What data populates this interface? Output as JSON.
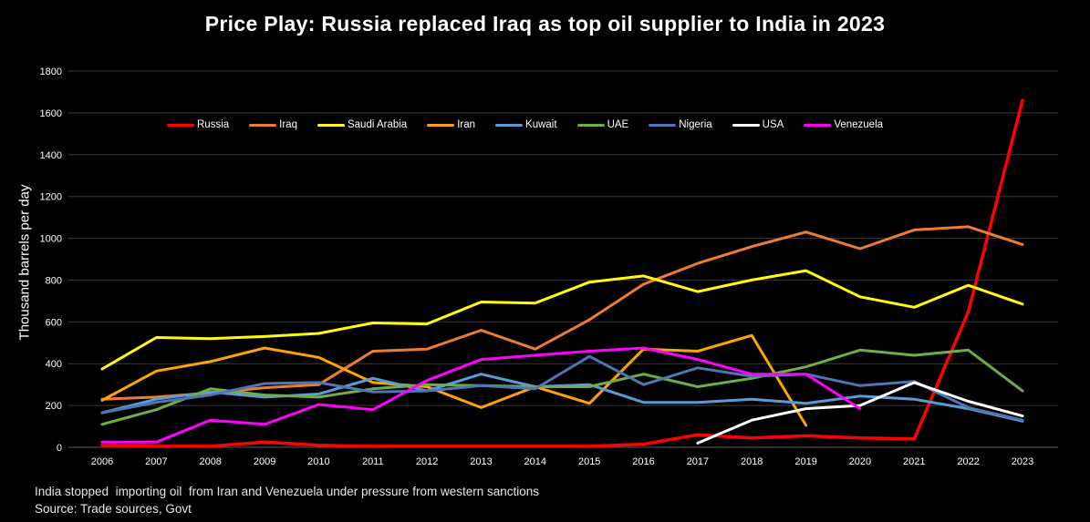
{
  "page": {
    "title": "Price Play: Russia replaced Iraq as top oil supplier to India in 2023",
    "footnote": "India stopped  importing oil  from Iran and Venezuela under pressure from western sanctions",
    "source": "Source: Trade sources, Govt"
  },
  "chart_data": {
    "type": "line",
    "title": "Price Play: Russia replaced Iraq as top oil supplier to India in 2023",
    "xlabel": "",
    "ylabel": "Thousand barrels per day",
    "ylim": [
      0,
      1800
    ],
    "ytick_step": 200,
    "grid": true,
    "legend_position": "top-inside",
    "background": "#000000",
    "categories": [
      2006,
      2007,
      2008,
      2009,
      2010,
      2011,
      2012,
      2013,
      2014,
      2015,
      2016,
      2017,
      2018,
      2019,
      2020,
      2021,
      2022,
      2023
    ],
    "series": [
      {
        "name": "Russia",
        "color": "#FF0000",
        "width": 3.5,
        "values": [
          10,
          5,
          5,
          25,
          10,
          5,
          5,
          5,
          5,
          5,
          15,
          60,
          45,
          55,
          45,
          40,
          650,
          1660
        ]
      },
      {
        "name": "Iraq",
        "color": "#ED7D31",
        "width": 3,
        "values": [
          230,
          240,
          260,
          285,
          300,
          460,
          470,
          560,
          470,
          610,
          780,
          880,
          960,
          1030,
          950,
          1040,
          1055,
          970
        ]
      },
      {
        "name": "Saudi Arabia",
        "color": "#FFFF00",
        "width": 3,
        "values": [
          375,
          525,
          520,
          530,
          545,
          595,
          590,
          695,
          690,
          790,
          820,
          745,
          800,
          845,
          720,
          670,
          775,
          685
        ]
      },
      {
        "name": "Iran",
        "color": "#FFA500",
        "width": 3,
        "values": [
          225,
          365,
          410,
          475,
          430,
          310,
          290,
          190,
          290,
          210,
          470,
          460,
          535,
          105,
          null,
          null,
          null,
          null
        ]
      },
      {
        "name": "Kuwait",
        "color": "#5B9BD5",
        "width": 3,
        "values": [
          165,
          230,
          265,
          240,
          255,
          330,
          270,
          350,
          290,
          300,
          215,
          215,
          230,
          210,
          245,
          230,
          185,
          125
        ]
      },
      {
        "name": "UAE",
        "color": "#70AD47",
        "width": 3,
        "values": [
          110,
          180,
          280,
          250,
          240,
          280,
          300,
          295,
          290,
          290,
          350,
          290,
          330,
          385,
          465,
          440,
          465,
          270
        ]
      },
      {
        "name": "Nigeria",
        "color": "#4E76B4",
        "width": 3,
        "values": [
          165,
          215,
          250,
          305,
          310,
          265,
          270,
          295,
          280,
          435,
          300,
          380,
          340,
          350,
          295,
          315,
          190,
          130
        ]
      },
      {
        "name": "USA",
        "color": "#FFFFFF",
        "width": 3,
        "values": [
          null,
          null,
          null,
          null,
          null,
          null,
          null,
          null,
          null,
          null,
          null,
          20,
          130,
          185,
          200,
          310,
          220,
          150
        ]
      },
      {
        "name": "Venezuela",
        "color": "#FF00FF",
        "width": 3,
        "values": [
          25,
          25,
          130,
          110,
          205,
          180,
          320,
          420,
          440,
          460,
          475,
          420,
          350,
          350,
          185,
          null,
          null,
          null
        ]
      }
    ]
  }
}
